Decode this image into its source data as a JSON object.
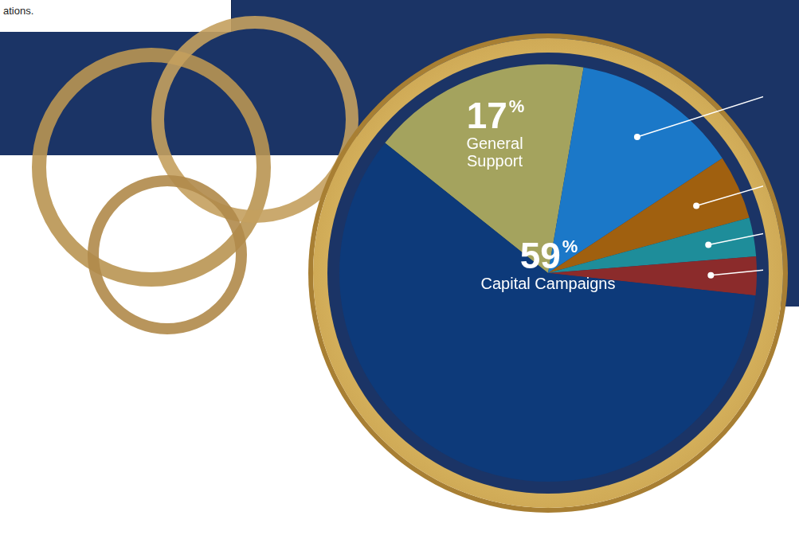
{
  "chart_data": {
    "type": "pie",
    "annotations": [
      "ations."
    ],
    "categories": [
      "General Support",
      null,
      null,
      null,
      null,
      "Capital Campaigns"
    ],
    "values": [
      17,
      13,
      5,
      3,
      3,
      59
    ],
    "value_labels": [
      "17%",
      null,
      null,
      null,
      null,
      "59%"
    ],
    "colors": [
      "#a4a35e",
      "#1b78c8",
      "#a0600f",
      "#1e8d9a",
      "#8b2b2b",
      "#0d3a7a"
    ],
    "data_labels": true
  }
}
